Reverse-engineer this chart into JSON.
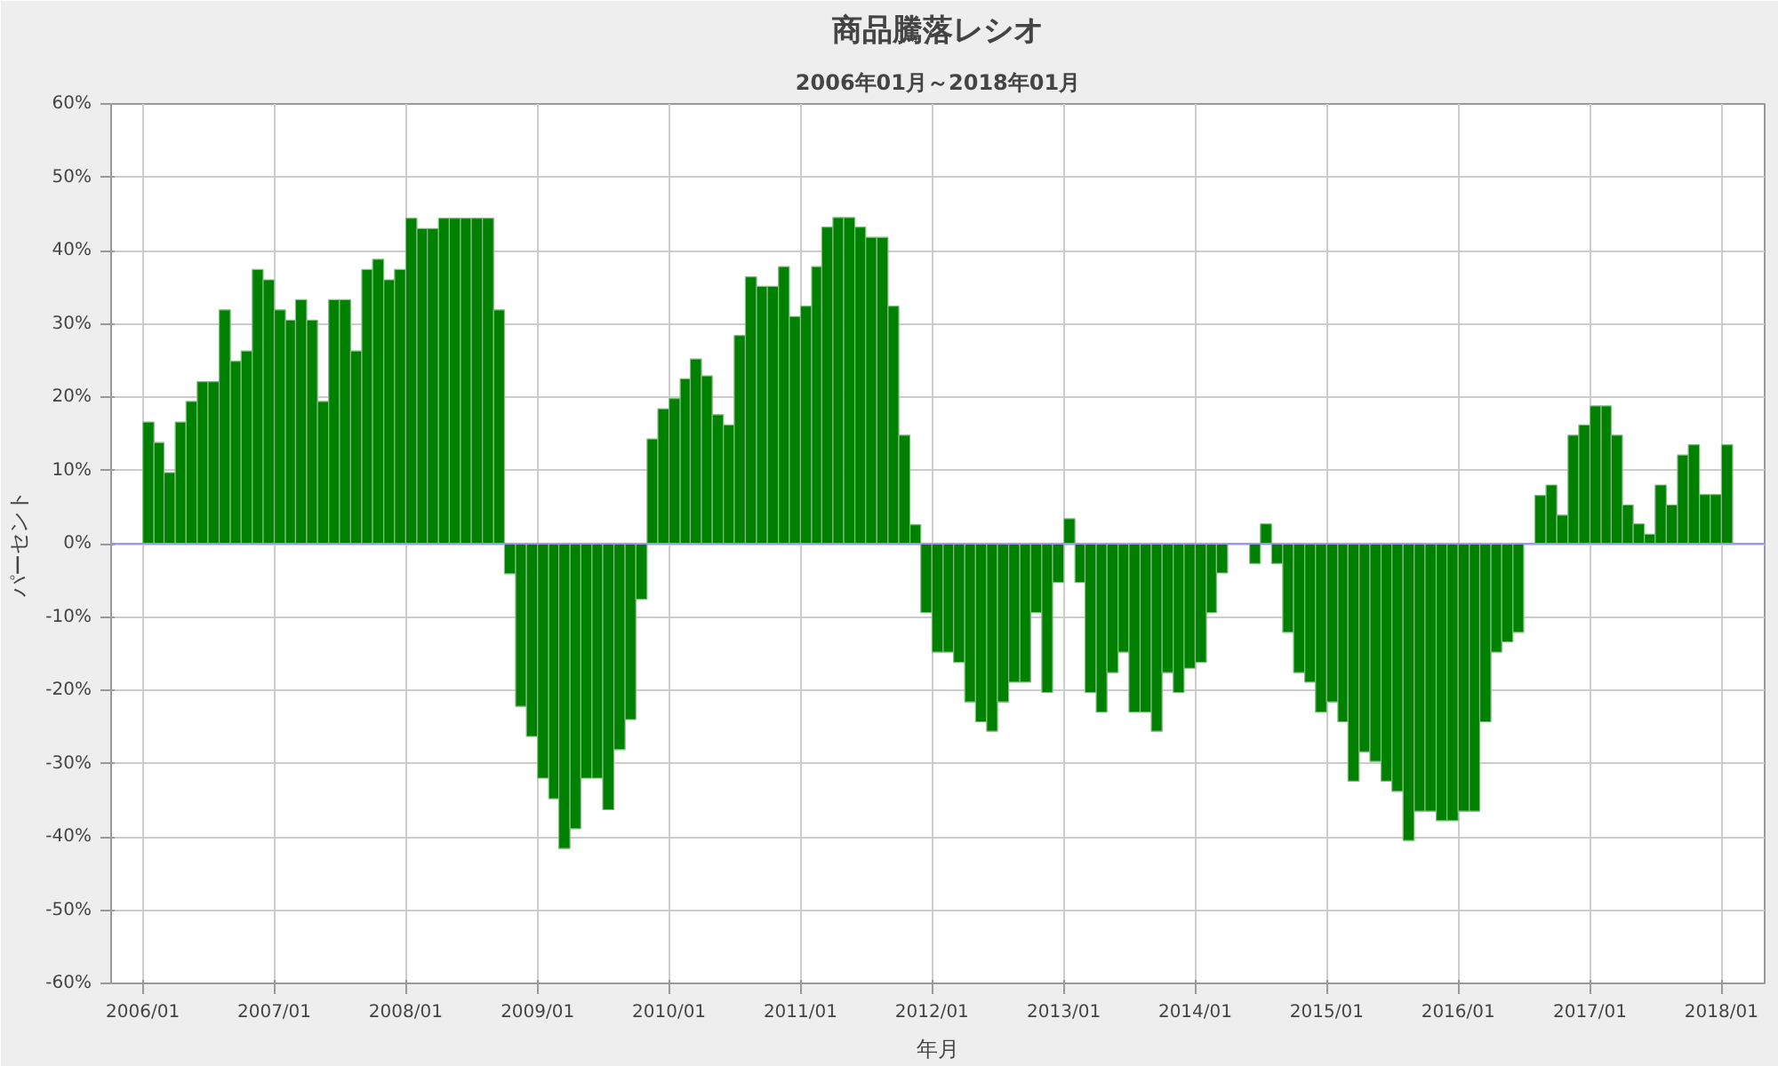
{
  "chart_data": {
    "type": "bar",
    "title": "商品騰落レシオ",
    "subtitle": "2006年01月～2018年01月",
    "xlabel": "年月",
    "ylabel": "パーセント",
    "x": [
      "2006-01",
      "2006-02",
      "2006-03",
      "2006-04",
      "2006-05",
      "2006-06",
      "2006-07",
      "2006-08",
      "2006-09",
      "2006-10",
      "2006-11",
      "2006-12",
      "2007-01",
      "2007-02",
      "2007-03",
      "2007-04",
      "2007-05",
      "2007-06",
      "2007-07",
      "2007-08",
      "2007-09",
      "2007-10",
      "2007-11",
      "2007-12",
      "2008-01",
      "2008-02",
      "2008-03",
      "2008-04",
      "2008-05",
      "2008-06",
      "2008-07",
      "2008-08",
      "2008-09",
      "2008-10",
      "2008-11",
      "2008-12",
      "2009-01",
      "2009-02",
      "2009-03",
      "2009-04",
      "2009-05",
      "2009-06",
      "2009-07",
      "2009-08",
      "2009-09",
      "2009-10",
      "2009-11",
      "2009-12",
      "2010-01",
      "2010-02",
      "2010-03",
      "2010-04",
      "2010-05",
      "2010-06",
      "2010-07",
      "2010-08",
      "2010-09",
      "2010-10",
      "2010-11",
      "2010-12",
      "2011-01",
      "2011-02",
      "2011-03",
      "2011-04",
      "2011-05",
      "2011-06",
      "2011-07",
      "2011-08",
      "2011-09",
      "2011-10",
      "2011-11",
      "2011-12",
      "2012-01",
      "2012-02",
      "2012-03",
      "2012-04",
      "2012-05",
      "2012-06",
      "2012-07",
      "2012-08",
      "2012-09",
      "2012-10",
      "2012-11",
      "2012-12",
      "2013-01",
      "2013-02",
      "2013-03",
      "2013-04",
      "2013-05",
      "2013-06",
      "2013-07",
      "2013-08",
      "2013-09",
      "2013-10",
      "2013-11",
      "2013-12",
      "2014-01",
      "2014-02",
      "2014-03",
      "2014-04",
      "2014-05",
      "2014-06",
      "2014-07",
      "2014-08",
      "2014-09",
      "2014-10",
      "2014-11",
      "2014-12",
      "2015-01",
      "2015-02",
      "2015-03",
      "2015-04",
      "2015-05",
      "2015-06",
      "2015-07",
      "2015-08",
      "2015-09",
      "2015-10",
      "2015-11",
      "2015-12",
      "2016-01",
      "2016-02",
      "2016-03",
      "2016-04",
      "2016-05",
      "2016-06",
      "2016-07",
      "2016-08",
      "2016-09",
      "2016-10",
      "2016-11",
      "2016-12",
      "2017-01",
      "2017-02",
      "2017-03",
      "2017-04",
      "2017-05",
      "2017-06",
      "2017-07",
      "2017-08",
      "2017-09",
      "2017-10",
      "2017-11",
      "2017-12",
      "2018-01"
    ],
    "series": [
      {
        "color": "#008000",
        "values": [
          16.6,
          13.8,
          9.7,
          16.6,
          19.4,
          22.1,
          22.1,
          31.9,
          24.9,
          26.3,
          37.4,
          36.0,
          31.9,
          30.5,
          33.3,
          30.5,
          19.4,
          33.3,
          33.3,
          26.3,
          37.4,
          38.8,
          36.0,
          37.4,
          44.4,
          43.0,
          43.0,
          44.4,
          44.4,
          44.4,
          44.4,
          44.4,
          31.9,
          -4.1,
          -22.2,
          -26.3,
          -32.0,
          -34.8,
          -41.6,
          -38.9,
          -32.0,
          -32.0,
          -36.3,
          -28.1,
          -24.0,
          -7.6,
          14.3,
          18.4,
          19.8,
          22.5,
          25.2,
          22.9,
          17.6,
          16.2,
          28.4,
          36.4,
          35.1,
          35.1,
          37.8,
          31.0,
          32.4,
          37.8,
          43.2,
          44.5,
          44.5,
          43.2,
          41.8,
          41.8,
          32.4,
          14.8,
          2.6,
          -9.4,
          -14.8,
          -14.8,
          -16.2,
          -21.6,
          -24.3,
          -25.6,
          -21.6,
          -18.9,
          -18.9,
          -9.4,
          -20.3,
          -5.3,
          3.4,
          -5.3,
          -20.3,
          -23.0,
          -17.6,
          -14.8,
          -23.0,
          -23.0,
          -25.6,
          -17.6,
          -20.3,
          -17.0,
          -16.2,
          -9.4,
          -4.0,
          0,
          0,
          -2.7,
          2.7,
          -2.7,
          -12.1,
          -17.6,
          -18.9,
          -23.0,
          -21.6,
          -24.3,
          -32.4,
          -28.4,
          -29.7,
          -32.4,
          -33.8,
          -40.5,
          -36.5,
          -36.5,
          -37.8,
          -37.8,
          -36.5,
          -36.5,
          -24.3,
          -14.8,
          -13.4,
          -12.1,
          0,
          6.6,
          8.0,
          3.9,
          14.8,
          16.2,
          18.8,
          18.8,
          14.8,
          5.3,
          2.7,
          1.3,
          8.0,
          5.3,
          12.1,
          13.5,
          6.7,
          6.7,
          13.5
        ]
      }
    ],
    "xlim": [
      "2005-10-05",
      "2018-05"
    ],
    "xticks": [
      {
        "value": "2006-01",
        "label": "2006/01"
      },
      {
        "value": "2007-01",
        "label": "2007/01"
      },
      {
        "value": "2008-01",
        "label": "2008/01"
      },
      {
        "value": "2009-01",
        "label": "2009/01"
      },
      {
        "value": "2010-01",
        "label": "2010/01"
      },
      {
        "value": "2011-01",
        "label": "2011/01"
      },
      {
        "value": "2012-01",
        "label": "2012/01"
      },
      {
        "value": "2013-01",
        "label": "2013/01"
      },
      {
        "value": "2014-01",
        "label": "2014/01"
      },
      {
        "value": "2015-01",
        "label": "2015/01"
      },
      {
        "value": "2016-01",
        "label": "2016/01"
      },
      {
        "value": "2017-01",
        "label": "2017/01"
      },
      {
        "value": "2018-01",
        "label": "2018/01"
      }
    ],
    "ylim": [
      -60,
      60
    ],
    "yticks": [
      {
        "value": -60,
        "label": "-60%"
      },
      {
        "value": -50,
        "label": "-50%"
      },
      {
        "value": -40,
        "label": "-40%"
      },
      {
        "value": -30,
        "label": "-30%"
      },
      {
        "value": -20,
        "label": "-20%"
      },
      {
        "value": -10,
        "label": "-10%"
      },
      {
        "value": 0,
        "label": "0%"
      },
      {
        "value": 10,
        "label": "10%"
      },
      {
        "value": 20,
        "label": "20%"
      },
      {
        "value": 30,
        "label": "30%"
      },
      {
        "value": 40,
        "label": "40%"
      },
      {
        "value": 50,
        "label": "50%"
      },
      {
        "value": 60,
        "label": "60%"
      }
    ],
    "ref_lines": [
      {
        "axis": "y",
        "value": 0,
        "color": "#9a9ae6"
      }
    ],
    "grid": true
  }
}
